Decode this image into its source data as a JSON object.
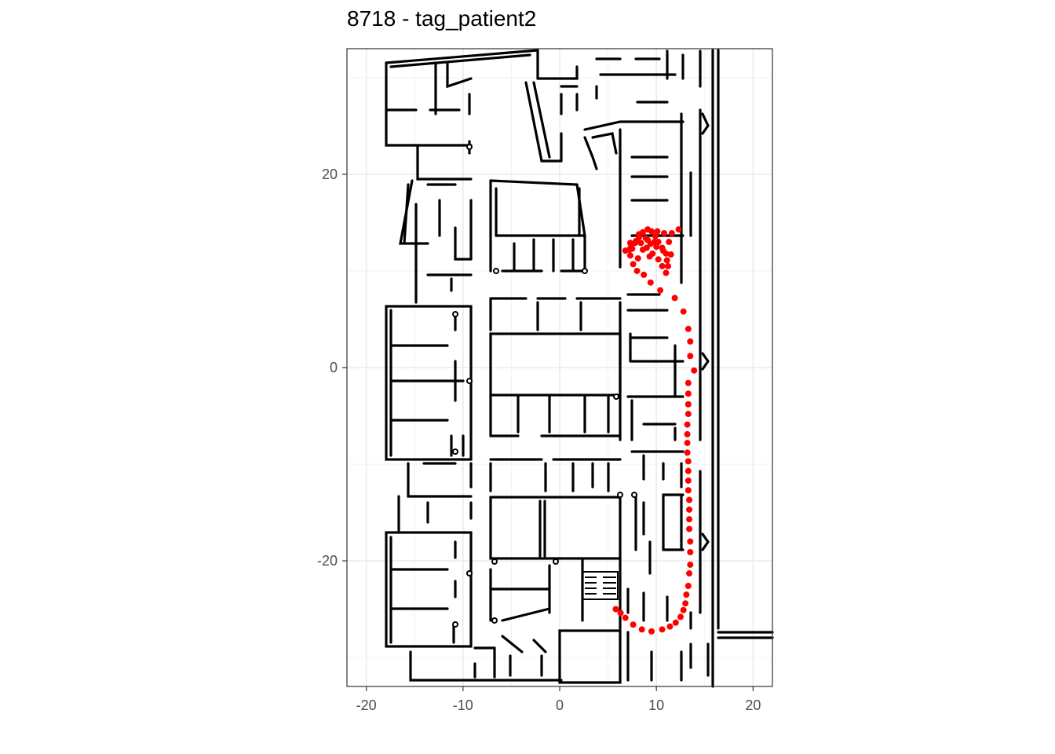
{
  "chart_data": {
    "type": "scatter",
    "title": "8718 - tag_patient2",
    "xlabel": "",
    "ylabel": "",
    "xlim": [
      -22,
      22
    ],
    "ylim": [
      -33,
      33
    ],
    "x_ticks": [
      -20,
      -10,
      0,
      10,
      20
    ],
    "y_ticks": [
      -20,
      0,
      20
    ],
    "x_tick_labels": [
      "-20",
      "-10",
      "0",
      "10",
      "20"
    ],
    "y_tick_labels": [
      "-20",
      "0",
      "20"
    ],
    "grid": true,
    "legend": "none",
    "point_color": "#ff0000",
    "background_map": "floor-plan",
    "series": [
      {
        "points": [
          [
            5.8,
            -25.0
          ],
          [
            6.3,
            -25.4
          ],
          [
            6.8,
            -25.9
          ],
          [
            7.6,
            -26.6
          ],
          [
            8.5,
            -27.1
          ],
          [
            9.5,
            -27.3
          ],
          [
            10.6,
            -27.1
          ],
          [
            11.4,
            -26.8
          ],
          [
            12.0,
            -26.4
          ],
          [
            12.5,
            -25.8
          ],
          [
            12.8,
            -25.1
          ],
          [
            13.0,
            -24.4
          ],
          [
            13.1,
            -23.5
          ],
          [
            13.3,
            -22.6
          ],
          [
            13.4,
            -21.3
          ],
          [
            13.5,
            -20.4
          ],
          [
            13.5,
            -19.1
          ],
          [
            13.5,
            -18.0
          ],
          [
            13.4,
            -16.7
          ],
          [
            13.4,
            -15.7
          ],
          [
            13.4,
            -14.7
          ],
          [
            13.4,
            -13.7
          ],
          [
            13.3,
            -12.7
          ],
          [
            13.3,
            -11.7
          ],
          [
            13.3,
            -10.7
          ],
          [
            13.3,
            -9.7
          ],
          [
            13.2,
            -8.8
          ],
          [
            13.2,
            -7.8
          ],
          [
            13.2,
            -6.9
          ],
          [
            13.2,
            -5.9
          ],
          [
            13.3,
            -4.8
          ],
          [
            13.3,
            -3.8
          ],
          [
            13.3,
            -2.7
          ],
          [
            13.3,
            -1.6
          ],
          [
            13.9,
            -0.3
          ],
          [
            13.5,
            1.2
          ],
          [
            13.5,
            2.7
          ],
          [
            13.3,
            4.0
          ],
          [
            12.8,
            5.8
          ],
          [
            11.9,
            7.2
          ],
          [
            10.4,
            8.0
          ],
          [
            9.4,
            8.8
          ],
          [
            8.7,
            9.6
          ],
          [
            8.0,
            10.0
          ],
          [
            7.6,
            10.7
          ],
          [
            7.3,
            11.6
          ],
          [
            7.5,
            12.3
          ],
          [
            7.8,
            12.9
          ],
          [
            8.2,
            13.5
          ],
          [
            8.6,
            14.0
          ],
          [
            9.1,
            14.3
          ],
          [
            9.5,
            14.1
          ],
          [
            9.9,
            13.6
          ],
          [
            10.2,
            13.0
          ],
          [
            10.6,
            12.4
          ],
          [
            11.0,
            11.8
          ],
          [
            11.1,
            11.1
          ],
          [
            11.2,
            10.5
          ],
          [
            11.0,
            9.8
          ],
          [
            10.6,
            10.5
          ],
          [
            10.2,
            11.2
          ],
          [
            9.6,
            11.8
          ],
          [
            9.0,
            12.4
          ],
          [
            8.4,
            12.9
          ],
          [
            7.9,
            13.1
          ],
          [
            7.4,
            12.6
          ],
          [
            7.2,
            12.2
          ],
          [
            6.8,
            12.1
          ],
          [
            7.3,
            12.9
          ],
          [
            8.2,
            13.8
          ],
          [
            8.9,
            13.4
          ],
          [
            9.4,
            12.8
          ],
          [
            10.0,
            12.5
          ],
          [
            10.7,
            12.1
          ],
          [
            11.5,
            11.7
          ],
          [
            11.3,
            13.0
          ],
          [
            10.8,
            13.9
          ],
          [
            10.1,
            14.1
          ],
          [
            9.8,
            13.0
          ],
          [
            9.3,
            11.5
          ],
          [
            11.6,
            13.9
          ],
          [
            12.3,
            14.3
          ],
          [
            8.1,
            11.3
          ],
          [
            8.6,
            12.2
          ],
          [
            9.1,
            13.2
          ]
        ]
      }
    ]
  }
}
